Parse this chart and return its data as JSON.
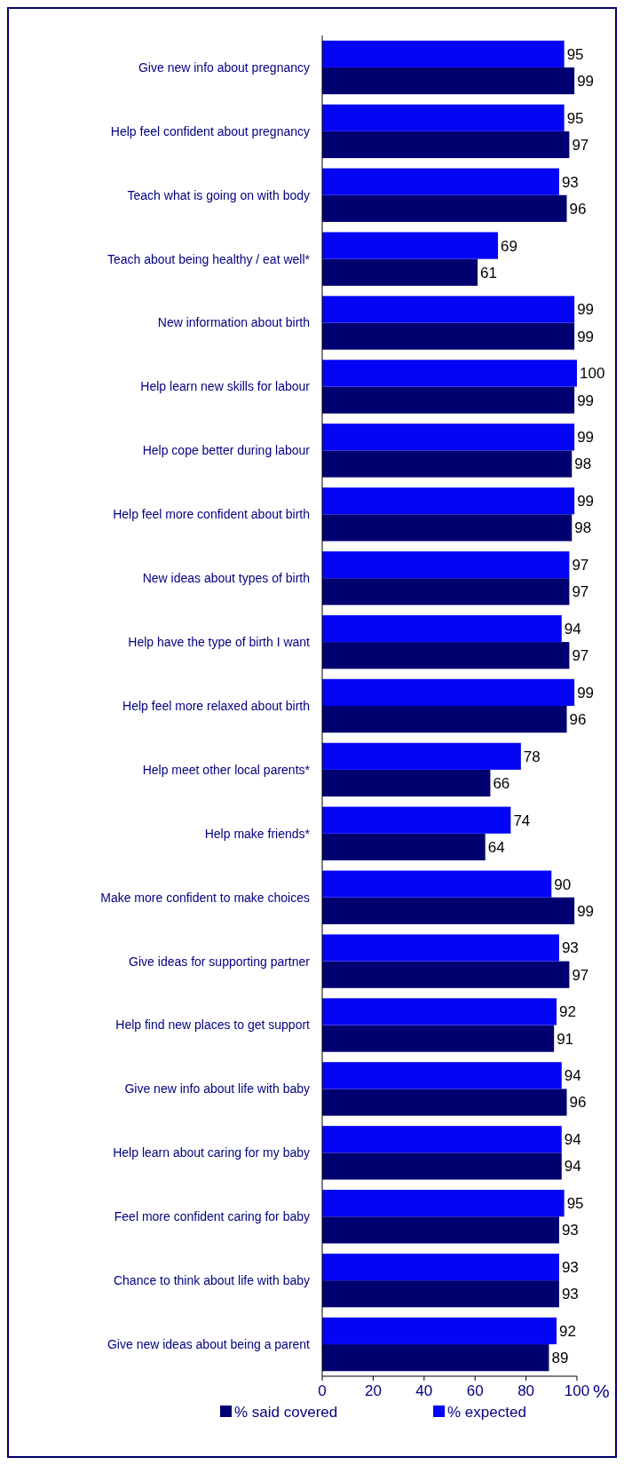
{
  "chart_data": {
    "type": "bar",
    "orientation": "horizontal",
    "xlabel": "%",
    "categories": [
      "Give new info about pregnancy",
      "Help feel confident about pregnancy",
      "Teach what is going on with body",
      "Teach about being healthy / eat well*",
      "New information about birth",
      "Help learn new skills for labour",
      "Help cope better during labour",
      "Help feel more confident about birth",
      "New ideas about types of birth",
      "Help have the type of birth I want",
      "Help feel more relaxed about birth",
      "Help meet other local parents*",
      "Help make friends*",
      "Make more confident to make choices",
      "Give ideas for supporting partner",
      "Help find new places to get support",
      "Give new info about life with baby",
      "Help learn about caring for my baby",
      "Feel more confident caring for baby",
      "Chance to think about life with baby",
      "Give new ideas about being a parent"
    ],
    "series": [
      {
        "name": "% said covered",
        "color": "#000070",
        "values": [
          99,
          97,
          96,
          61,
          99,
          99,
          98,
          98,
          97,
          97,
          96,
          66,
          64,
          99,
          97,
          91,
          96,
          94,
          93,
          93,
          89
        ]
      },
      {
        "name": "% expected",
        "color": "#0505f5",
        "values": [
          95,
          95,
          93,
          69,
          99,
          100,
          99,
          99,
          97,
          94,
          99,
          78,
          74,
          90,
          93,
          92,
          94,
          94,
          95,
          93,
          92
        ]
      }
    ],
    "xlim": [
      0,
      100
    ],
    "xticks": [
      0,
      20,
      40,
      60,
      80,
      100
    ],
    "data_labels": true,
    "legend": "bottom",
    "grid": false
  }
}
